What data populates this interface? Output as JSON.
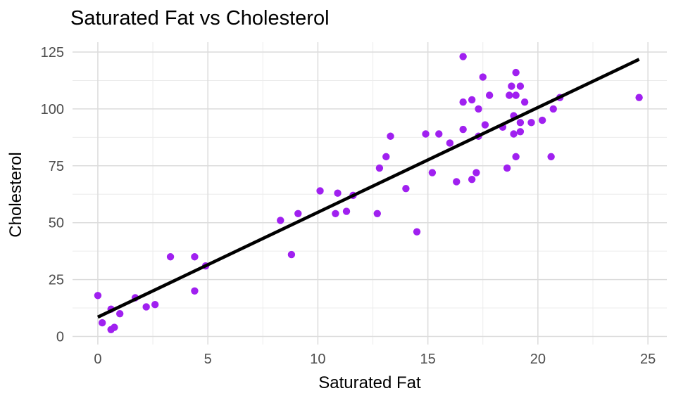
{
  "chart_data": {
    "type": "scatter",
    "title": "Saturated Fat vs Cholesterol",
    "xlabel": "Saturated Fat",
    "ylabel": "Cholesterol",
    "x_ticks": [
      0,
      5,
      10,
      15,
      20,
      25
    ],
    "x_minor_ticks": [
      2.5,
      7.5,
      12.5,
      17.5,
      22.5
    ],
    "y_ticks": [
      0,
      25,
      50,
      75,
      100,
      125
    ],
    "y_minor_ticks": [
      12.5,
      37.5,
      62.5,
      87.5,
      112.5
    ],
    "x_domain": [
      -1.15,
      25.86
    ],
    "y_domain": [
      -3.55,
      129.33
    ],
    "grid": true,
    "legend": false,
    "colors": {
      "background": "#FFFFFF",
      "point": "#A020F0",
      "regression_line": "#000000",
      "grid_major": "#DCDCDC",
      "grid_minor": "#ECECEC",
      "tick_label": "#4D4D4D",
      "title": "#000000"
    },
    "regression_line": {
      "x1": 0.0,
      "y1": 8.5,
      "x2": 24.6,
      "y2": 121.8
    },
    "points": [
      [
        0,
        18
      ],
      [
        0.2,
        6
      ],
      [
        0.6,
        12
      ],
      [
        0.6,
        3
      ],
      [
        0.75,
        4
      ],
      [
        1,
        10
      ],
      [
        1.7,
        17
      ],
      [
        2.2,
        13
      ],
      [
        2.6,
        14
      ],
      [
        3.3,
        35
      ],
      [
        4.4,
        35
      ],
      [
        4.4,
        20
      ],
      [
        4.9,
        31
      ],
      [
        8.3,
        51
      ],
      [
        8.8,
        36
      ],
      [
        9.1,
        54
      ],
      [
        10.1,
        64
      ],
      [
        10.8,
        54
      ],
      [
        10.9,
        63
      ],
      [
        11.3,
        55
      ],
      [
        11.6,
        62
      ],
      [
        12.7,
        54
      ],
      [
        12.8,
        74
      ],
      [
        13.1,
        79
      ],
      [
        13.3,
        88
      ],
      [
        14,
        65
      ],
      [
        14.5,
        46
      ],
      [
        14.9,
        89
      ],
      [
        15.2,
        72
      ],
      [
        15.5,
        89
      ],
      [
        16,
        85
      ],
      [
        16.3,
        68
      ],
      [
        16.6,
        91
      ],
      [
        16.6,
        103
      ],
      [
        16.6,
        123
      ],
      [
        17,
        69
      ],
      [
        17,
        104
      ],
      [
        17.2,
        72
      ],
      [
        17.3,
        88
      ],
      [
        17.3,
        100
      ],
      [
        17.5,
        114
      ],
      [
        17.6,
        93
      ],
      [
        17.8,
        106
      ],
      [
        18.4,
        92
      ],
      [
        18.6,
        74
      ],
      [
        18.7,
        106
      ],
      [
        18.8,
        110
      ],
      [
        18.9,
        89
      ],
      [
        18.9,
        97
      ],
      [
        19,
        79
      ],
      [
        19,
        106
      ],
      [
        19,
        116
      ],
      [
        19.2,
        90
      ],
      [
        19.2,
        94
      ],
      [
        19.2,
        110
      ],
      [
        19.4,
        103
      ],
      [
        19.7,
        94
      ],
      [
        20.2,
        95
      ],
      [
        20.6,
        79
      ],
      [
        20.7,
        100
      ],
      [
        21,
        105
      ],
      [
        24.6,
        105
      ]
    ]
  }
}
